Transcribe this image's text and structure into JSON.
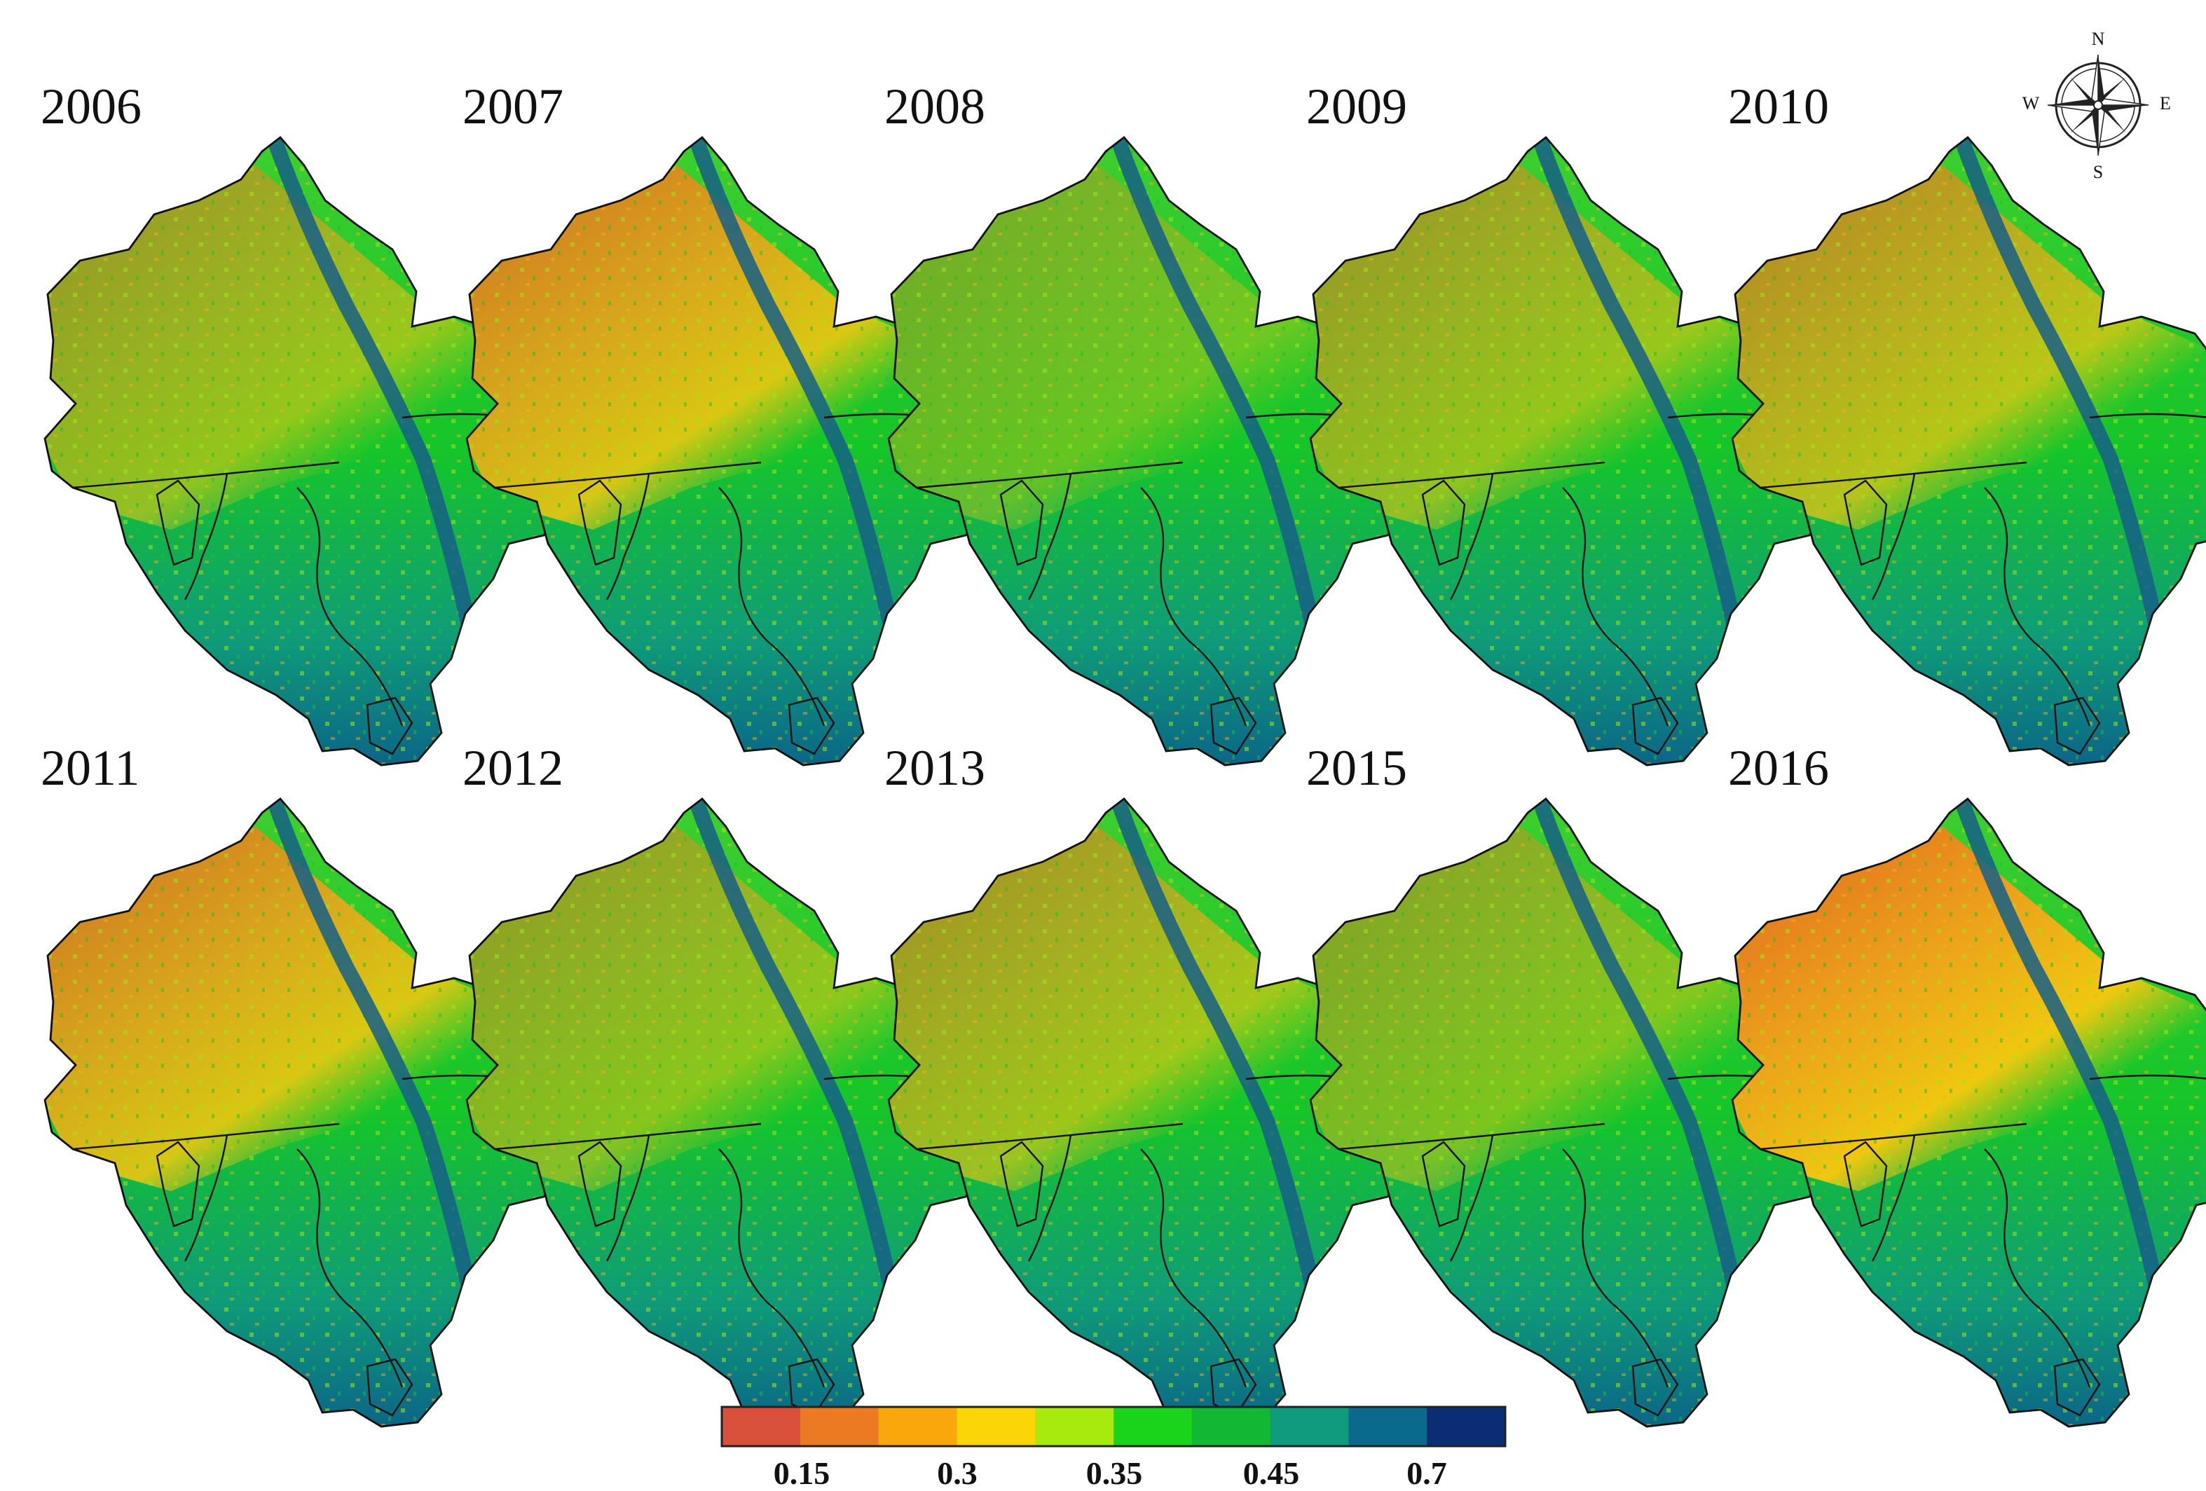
{
  "panels": [
    {
      "year": "2006",
      "dryness": 0.55
    },
    {
      "year": "2007",
      "dryness": 0.85
    },
    {
      "year": "2008",
      "dryness": 0.35
    },
    {
      "year": "2009",
      "dryness": 0.55
    },
    {
      "year": "2010",
      "dryness": 0.7
    },
    {
      "year": "2011",
      "dryness": 0.85
    },
    {
      "year": "2012",
      "dryness": 0.5
    },
    {
      "year": "2013",
      "dryness": 0.6
    },
    {
      "year": "2015",
      "dryness": 0.45
    },
    {
      "year": "2016",
      "dryness": 0.95
    }
  ],
  "compass": {
    "n": "N",
    "s": "S",
    "e": "E",
    "w": "W"
  },
  "legend": {
    "colors": [
      "#d9503b",
      "#ec7a22",
      "#f9a70b",
      "#fbd506",
      "#a9ea0e",
      "#19d41a",
      "#12b833",
      "#0e9b7e",
      "#0b6a8c",
      "#0b2d73"
    ],
    "tick_labels": [
      "0.15",
      "0.3",
      "0.35",
      "0.45",
      "0.7"
    ]
  }
}
